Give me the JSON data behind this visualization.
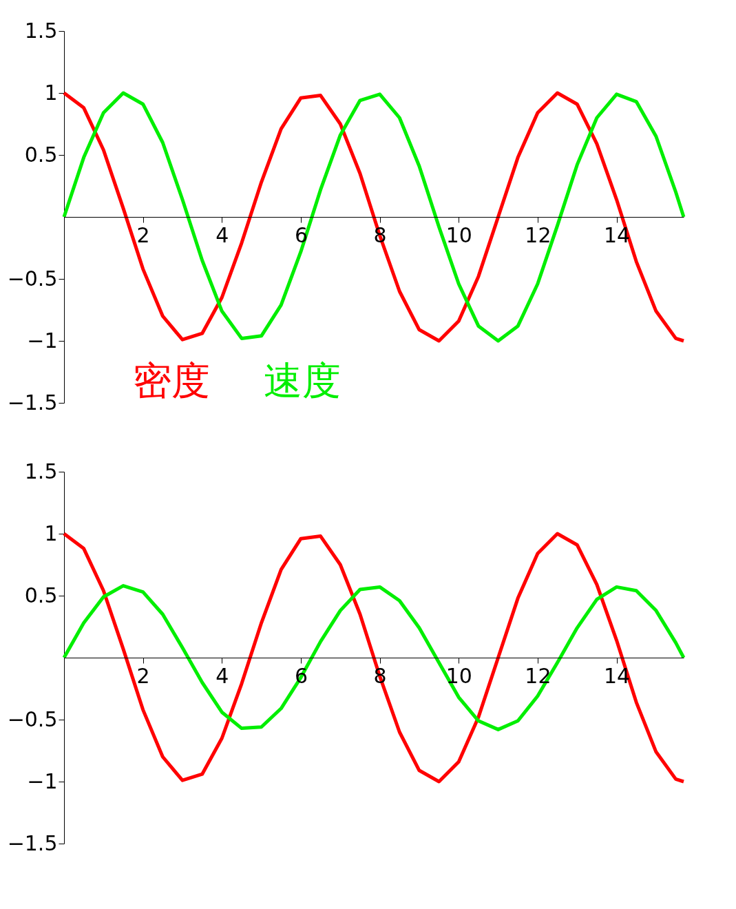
{
  "chart_data": [
    {
      "type": "line",
      "xlim": [
        0,
        15.7
      ],
      "ylim": [
        -1.5,
        1.5
      ],
      "xticks": [
        2,
        4,
        6,
        8,
        10,
        12,
        14
      ],
      "yticks": [
        -1.5,
        -1,
        -0.5,
        0.5,
        1,
        1.5
      ],
      "grid": false,
      "legend": "bottom left",
      "marker": "none",
      "line_style": "solid",
      "x": [
        0,
        0.5,
        1,
        1.5,
        2,
        2.5,
        3,
        3.5,
        4,
        4.5,
        5,
        5.5,
        6,
        6.5,
        7,
        7.5,
        8,
        8.5,
        9,
        9.5,
        10,
        10.5,
        11,
        11.5,
        12,
        12.5,
        13,
        13.5,
        14,
        14.5,
        15,
        15.5,
        15.7
      ],
      "series": [
        {
          "name": "密度",
          "color": "#ff0000",
          "values": [
            1,
            0.88,
            0.54,
            0.07,
            -0.42,
            -0.8,
            -0.99,
            -0.94,
            -0.65,
            -0.21,
            0.28,
            0.71,
            0.96,
            0.98,
            0.75,
            0.35,
            -0.15,
            -0.6,
            -0.91,
            -1,
            -0.84,
            -0.48,
            0,
            0.48,
            0.84,
            1,
            0.91,
            0.59,
            0.14,
            -0.36,
            -0.76,
            -0.98,
            -1
          ]
        },
        {
          "name": "速度",
          "color": "#00ee00",
          "values": [
            0,
            0.48,
            0.84,
            1,
            0.91,
            0.6,
            0.14,
            -0.35,
            -0.76,
            -0.98,
            -0.96,
            -0.71,
            -0.28,
            0.22,
            0.66,
            0.94,
            0.99,
            0.8,
            0.41,
            -0.08,
            -0.54,
            -0.88,
            -1,
            -0.88,
            -0.54,
            -0.07,
            0.42,
            0.8,
            0.99,
            0.93,
            0.65,
            0.2,
            0
          ]
        }
      ]
    },
    {
      "type": "line",
      "xlim": [
        0,
        15.7
      ],
      "ylim": [
        -1.5,
        1.5
      ],
      "xticks": [
        2,
        4,
        6,
        8,
        10,
        12,
        14
      ],
      "yticks": [
        -1.5,
        -1,
        -0.5,
        0.5,
        1,
        1.5
      ],
      "grid": false,
      "marker": "none",
      "line_style": "solid",
      "x": [
        0,
        0.5,
        1,
        1.5,
        2,
        2.5,
        3,
        3.5,
        4,
        4.5,
        5,
        5.5,
        6,
        6.5,
        7,
        7.5,
        8,
        8.5,
        9,
        9.5,
        10,
        10.5,
        11,
        11.5,
        12,
        12.5,
        13,
        13.5,
        14,
        14.5,
        15,
        15.5,
        15.7
      ],
      "series": [
        {
          "color": "#ff0000",
          "values": [
            1,
            0.88,
            0.54,
            0.07,
            -0.42,
            -0.8,
            -0.99,
            -0.94,
            -0.65,
            -0.21,
            0.28,
            0.71,
            0.96,
            0.98,
            0.75,
            0.35,
            -0.15,
            -0.6,
            -0.91,
            -1,
            -0.84,
            -0.48,
            0,
            0.48,
            0.84,
            1,
            0.91,
            0.59,
            0.14,
            -0.36,
            -0.76,
            -0.98,
            -1
          ]
        },
        {
          "color": "#00ee00",
          "values": [
            0,
            0.28,
            0.49,
            0.58,
            0.53,
            0.35,
            0.08,
            -0.2,
            -0.44,
            -0.57,
            -0.56,
            -0.41,
            -0.16,
            0.13,
            0.38,
            0.55,
            0.57,
            0.46,
            0.24,
            -0.04,
            -0.32,
            -0.51,
            -0.58,
            -0.51,
            -0.31,
            -0.04,
            0.24,
            0.47,
            0.57,
            0.54,
            0.38,
            0.12,
            0
          ]
        }
      ]
    }
  ]
}
